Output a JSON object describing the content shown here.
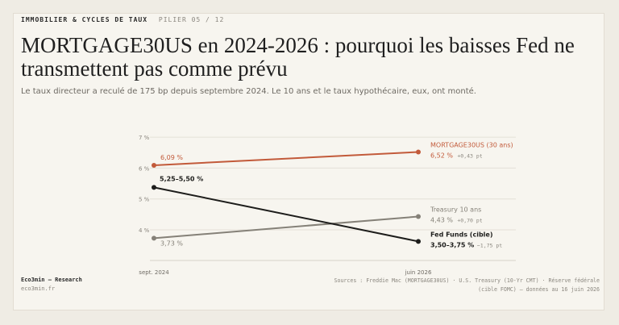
{
  "header": {
    "kicker": "IMMOBILIER & CYCLES DE TAUX",
    "pillar": "PILIER 05 / 12",
    "title": "MORTGAGE30US en 2024-2026 : pourquoi les baisses Fed ne transmettent pas comme prévu",
    "subtitle": "Le taux directeur a reculé de 175 bp depuis septembre 2024. Le 10 ans et le taux hypothécaire, eux, ont monté."
  },
  "chart_data": {
    "type": "line",
    "x": [
      "sept. 2024",
      "juin 2026"
    ],
    "y_ticks": [
      "7 %",
      "6 %",
      "5 %",
      "4 %"
    ],
    "ylim": [
      3.0,
      7.0
    ],
    "grid": true,
    "series": [
      {
        "name": "MORTGAGE30US (30 ans)",
        "values": [
          6.09,
          6.52
        ],
        "start_label": "6,09 %",
        "end_value_label": "6,52 %",
        "end_delta": "+0,43 pt",
        "color": "#c25a3a"
      },
      {
        "name": "Treasury 10 ans",
        "values": [
          3.73,
          4.43
        ],
        "start_label": "3,73 %",
        "end_value_label": "4,43 %",
        "end_delta": "+0,70 pt",
        "color": "#858178"
      },
      {
        "name": "Fed Funds (cible)",
        "values": [
          5.375,
          3.625
        ],
        "start_label": "5,25–5,50 %",
        "end_value_label": "3,50–3,75 %",
        "end_delta": "−1,75 pt",
        "color": "#1d1d1b"
      }
    ]
  },
  "footer": {
    "brand": "Eco3min — Research",
    "site": "eco3min.fr",
    "sources_line1": "Sources : Freddie Mac (MORTGAGE30US) · U.S. Treasury (10-Yr CMT) · Réserve fédérale",
    "sources_line2": "(cible FOMC) — données au 16 juin 2026"
  }
}
